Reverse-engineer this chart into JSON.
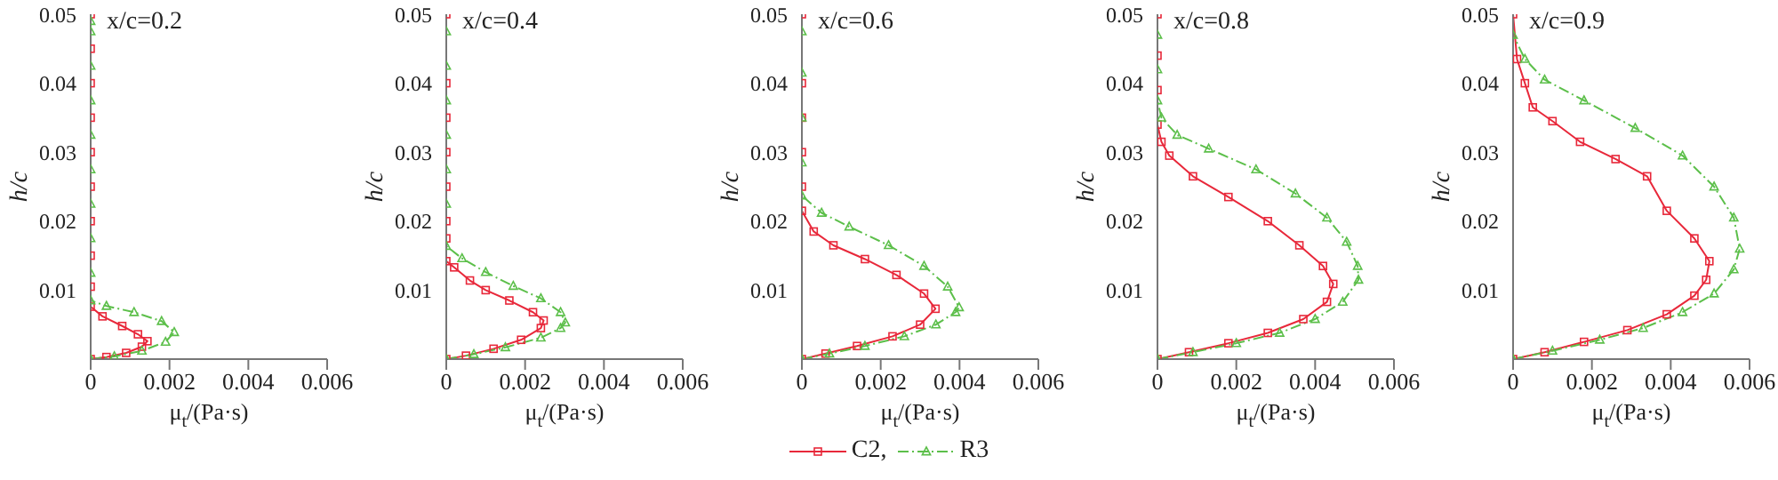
{
  "chart_data": [
    {
      "type": "line",
      "annotations": [
        "x/c=0.2"
      ],
      "xlabel": "μ$_{t}$/(Pa·s)",
      "ylabel": "h/c",
      "xlim": [
        0,
        0.006
      ],
      "xticks": [
        0,
        0.002,
        0.004,
        0.006
      ],
      "ylim": [
        0,
        0.05
      ],
      "yticks": [
        0.01,
        0.02,
        0.03,
        0.04,
        0.05
      ],
      "grid": false,
      "legend": false,
      "series": [
        {
          "color": "#e8283a",
          "marker": "square",
          "line_style": "solid",
          "x": [
            0,
            0.0004,
            0.0009,
            0.0013,
            0.00144,
            0.0012,
            0.0008,
            0.0003,
            0,
            0,
            0,
            0,
            0,
            0,
            0,
            0,
            0,
            0
          ],
          "values": [
            0,
            0.0003,
            0.0009,
            0.0018,
            0.0026,
            0.0036,
            0.0048,
            0.0062,
            0.0076,
            0.0105,
            0.015,
            0.02,
            0.025,
            0.03,
            0.035,
            0.04,
            0.045,
            0.05
          ]
        },
        {
          "color": "#5cbf4a",
          "marker": "triangle",
          "line_style": "dashed",
          "x": [
            0,
            0.0006,
            0.0013,
            0.0019,
            0.00212,
            0.0018,
            0.0011,
            0.0004,
            0,
            0,
            0,
            0,
            0,
            0,
            0,
            0,
            0,
            0
          ],
          "values": [
            0,
            0.0004,
            0.0012,
            0.0025,
            0.0039,
            0.0055,
            0.0068,
            0.0077,
            0.0085,
            0.0125,
            0.0175,
            0.0225,
            0.0275,
            0.0325,
            0.0375,
            0.0425,
            0.0475,
            0.049
          ]
        }
      ]
    },
    {
      "type": "line",
      "annotations": [
        "x/c=0.4"
      ],
      "xlabel": "μ$_{t}$/(Pa·s)",
      "ylabel": "h/c",
      "xlim": [
        0,
        0.006
      ],
      "xticks": [
        0,
        0.002,
        0.004,
        0.006
      ],
      "ylim": [
        0,
        0.05
      ],
      "yticks": [
        0.01,
        0.02,
        0.03,
        0.04,
        0.05
      ],
      "grid": false,
      "legend": false,
      "series": [
        {
          "color": "#e8283a",
          "marker": "square",
          "line_style": "solid",
          "x": [
            0,
            0.0005,
            0.0012,
            0.0019,
            0.0024,
            0.00247,
            0.0022,
            0.0016,
            0.001,
            0.0006,
            0.0002,
            0,
            0,
            0,
            0,
            0,
            0,
            0,
            0
          ],
          "values": [
            0,
            0.0005,
            0.0015,
            0.0028,
            0.0045,
            0.0056,
            0.0068,
            0.0085,
            0.01,
            0.0114,
            0.0133,
            0.0142,
            0.0175,
            0.02,
            0.025,
            0.03,
            0.035,
            0.04,
            0.05
          ]
        },
        {
          "color": "#5cbf4a",
          "marker": "triangle",
          "line_style": "dashed",
          "x": [
            0,
            0.0007,
            0.0015,
            0.0024,
            0.0029,
            0.00302,
            0.0029,
            0.0024,
            0.0017,
            0.001,
            0.0004,
            0,
            0,
            0,
            0,
            0,
            0,
            0
          ],
          "values": [
            0,
            0.0007,
            0.0017,
            0.0031,
            0.0045,
            0.0053,
            0.0068,
            0.0088,
            0.0106,
            0.0126,
            0.0146,
            0.0164,
            0.0225,
            0.0275,
            0.0325,
            0.0375,
            0.0425,
            0.0475
          ]
        }
      ]
    },
    {
      "type": "line",
      "annotations": [
        "x/c=0.6"
      ],
      "xlabel": "μ$_{t}$/(Pa·s)",
      "ylabel": "h/c",
      "xlim": [
        0,
        0.006
      ],
      "xticks": [
        0,
        0.002,
        0.004,
        0.006
      ],
      "ylim": [
        0,
        0.05
      ],
      "yticks": [
        0.01,
        0.02,
        0.03,
        0.04,
        0.05
      ],
      "grid": false,
      "legend": "bottom",
      "series": [
        {
          "name": "C2,",
          "color": "#e8283a",
          "marker": "square",
          "line_style": "solid",
          "x": [
            0,
            0.0006,
            0.0014,
            0.0023,
            0.003,
            0.00339,
            0.0031,
            0.0024,
            0.0016,
            0.0008,
            0.0003,
            0,
            0,
            0,
            0,
            0,
            0
          ],
          "values": [
            0,
            0.0008,
            0.0019,
            0.0033,
            0.005,
            0.0073,
            0.0095,
            0.0122,
            0.0145,
            0.0165,
            0.0185,
            0.0215,
            0.025,
            0.03,
            0.035,
            0.04,
            0.05
          ]
        },
        {
          "name": "R3",
          "color": "#5cbf4a",
          "marker": "triangle",
          "line_style": "dashed",
          "x": [
            0,
            0.0007,
            0.0016,
            0.0026,
            0.0034,
            0.0039,
            0.00399,
            0.0037,
            0.0031,
            0.0022,
            0.0012,
            0.0005,
            0,
            0,
            0,
            0,
            0
          ],
          "values": [
            0,
            0.0008,
            0.0019,
            0.0033,
            0.005,
            0.0068,
            0.0075,
            0.0105,
            0.0135,
            0.0165,
            0.0192,
            0.0212,
            0.0237,
            0.0285,
            0.035,
            0.0415,
            0.0475
          ]
        }
      ]
    },
    {
      "type": "line",
      "annotations": [
        "x/c=0.8"
      ],
      "xlabel": "μ$_{t}$/(Pa·s)",
      "ylabel": "h/c",
      "xlim": [
        0,
        0.006
      ],
      "xticks": [
        0,
        0.002,
        0.004,
        0.006
      ],
      "ylim": [
        0,
        0.05
      ],
      "yticks": [
        0.01,
        0.02,
        0.03,
        0.04,
        0.05
      ],
      "grid": false,
      "legend": false,
      "series": [
        {
          "color": "#e8283a",
          "marker": "square",
          "line_style": "solid",
          "x": [
            0,
            0.0008,
            0.0018,
            0.0028,
            0.0037,
            0.0043,
            0.00446,
            0.0042,
            0.0036,
            0.0028,
            0.0018,
            0.0009,
            0.0003,
            0.0001,
            0,
            0,
            0,
            0
          ],
          "values": [
            0,
            0.001,
            0.0023,
            0.0038,
            0.0058,
            0.0083,
            0.0109,
            0.0135,
            0.0165,
            0.02,
            0.0235,
            0.0265,
            0.0295,
            0.0315,
            0.034,
            0.039,
            0.044,
            0.05
          ]
        },
        {
          "color": "#5cbf4a",
          "marker": "triangle",
          "line_style": "dashed",
          "x": [
            0,
            0.0009,
            0.002,
            0.0031,
            0.004,
            0.0047,
            0.0051,
            0.00508,
            0.0048,
            0.0043,
            0.0035,
            0.0025,
            0.0013,
            0.0005,
            0.0001,
            0,
            0,
            0
          ],
          "values": [
            0,
            0.001,
            0.0023,
            0.0038,
            0.0058,
            0.0083,
            0.0115,
            0.0135,
            0.017,
            0.0205,
            0.024,
            0.0275,
            0.0305,
            0.0325,
            0.035,
            0.0375,
            0.042,
            0.047
          ]
        }
      ]
    },
    {
      "type": "line",
      "annotations": [
        "x/c=0.9"
      ],
      "xlabel": "μ$_{t}$/(Pa·s)",
      "ylabel": "h/c",
      "xlim": [
        0,
        0.006
      ],
      "xticks": [
        0,
        0.002,
        0.004,
        0.006
      ],
      "ylim": [
        0,
        0.05
      ],
      "yticks": [
        0.01,
        0.02,
        0.03,
        0.04,
        0.05
      ],
      "grid": false,
      "legend": false,
      "series": [
        {
          "color": "#e8283a",
          "marker": "square",
          "line_style": "solid",
          "x": [
            0,
            0.0008,
            0.0018,
            0.0029,
            0.0039,
            0.0046,
            0.0049,
            0.00498,
            0.0046,
            0.0039,
            0.0034,
            0.0026,
            0.0017,
            0.001,
            0.0005,
            0.0003,
            0.0001,
            0
          ],
          "values": [
            0,
            0.001,
            0.0025,
            0.0042,
            0.0065,
            0.0092,
            0.0115,
            0.0142,
            0.0175,
            0.0215,
            0.0265,
            0.029,
            0.0315,
            0.0345,
            0.0365,
            0.04,
            0.0435,
            0.05
          ]
        },
        {
          "color": "#5cbf4a",
          "marker": "triangle",
          "line_style": "dashed",
          "x": [
            0,
            0.001,
            0.0022,
            0.0033,
            0.0043,
            0.0051,
            0.0056,
            0.00575,
            0.0056,
            0.0051,
            0.0043,
            0.0031,
            0.0018,
            0.0008,
            0.0003,
            0
          ],
          "values": [
            0,
            0.0012,
            0.0028,
            0.0045,
            0.0068,
            0.0095,
            0.013,
            0.016,
            0.0205,
            0.025,
            0.0295,
            0.0335,
            0.0375,
            0.0405,
            0.0435,
            0.047
          ]
        }
      ]
    }
  ]
}
